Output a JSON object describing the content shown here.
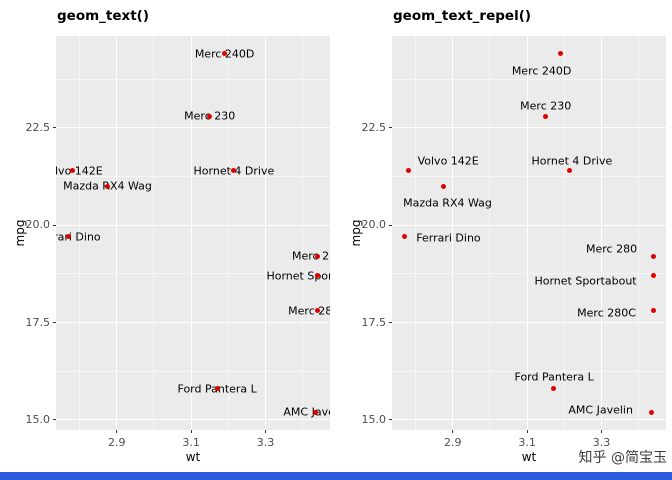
{
  "watermark": {
    "text": "知乎 @简宝玉",
    "bar_color": "#2b5ce0"
  },
  "chart_data": {
    "type": "scatter",
    "panels": [
      {
        "title": "geom_text()",
        "label_mode": "centered"
      },
      {
        "title": "geom_text_repel()",
        "label_mode": "repel"
      }
    ],
    "xlabel": "wt",
    "ylabel": "mpg",
    "xlim": [
      2.7365,
      3.4735
    ],
    "ylim": [
      14.74,
      24.86
    ],
    "x_ticks": [
      {
        "value": 2.9,
        "label": "2.9"
      },
      {
        "value": 3.1,
        "label": "3.1"
      },
      {
        "value": 3.3,
        "label": "3.3"
      }
    ],
    "y_ticks": [
      {
        "value": 15.0,
        "label": "15.0"
      },
      {
        "value": 17.5,
        "label": "17.5"
      },
      {
        "value": 20.0,
        "label": "20.0"
      },
      {
        "value": 22.5,
        "label": "22.5"
      }
    ],
    "x_minor_ticks": [
      2.8,
      3.0,
      3.2,
      3.4
    ],
    "y_minor_ticks": [
      16.25,
      18.75,
      21.25,
      23.75
    ],
    "styles": {
      "panel_bg": "#ebebeb",
      "grid_color": "#ffffff",
      "point_color": "#e00000",
      "label_color": "#000000",
      "tick_label_color": "#4d4d4d",
      "tick_mark_color": "#333333"
    },
    "points": [
      {
        "label": "Merc 240D",
        "wt": 3.19,
        "mpg": 24.4,
        "repel_dx": -19,
        "repel_dy": 17
      },
      {
        "label": "Merc 230",
        "wt": 3.15,
        "mpg": 22.8,
        "repel_dx": 0,
        "repel_dy": -10
      },
      {
        "label": "Volvo 142E",
        "wt": 2.78,
        "mpg": 21.4,
        "repel_dx": 40,
        "repel_dy": -10
      },
      {
        "label": "Hornet 4 Drive",
        "wt": 3.215,
        "mpg": 21.4,
        "repel_dx": 2,
        "repel_dy": -10
      },
      {
        "label": "Mazda RX4 Wag",
        "wt": 2.875,
        "mpg": 21.0,
        "repel_dx": 4,
        "repel_dy": 17
      },
      {
        "label": "Ferrari Dino",
        "wt": 2.77,
        "mpg": 19.7,
        "repel_dx": 44,
        "repel_dy": 1
      },
      {
        "label": "Merc 280",
        "wt": 3.44,
        "mpg": 19.2,
        "repel_dx": -42,
        "repel_dy": -7
      },
      {
        "label": "Hornet Sportabout",
        "wt": 3.44,
        "mpg": 18.7,
        "repel_dx": -68,
        "repel_dy": 5
      },
      {
        "label": "Merc 280C",
        "wt": 3.44,
        "mpg": 17.8,
        "repel_dx": -47,
        "repel_dy": 2
      },
      {
        "label": "Ford Pantera L",
        "wt": 3.17,
        "mpg": 15.8,
        "repel_dx": 1,
        "repel_dy": -12
      },
      {
        "label": "AMC Javelin",
        "wt": 3.435,
        "mpg": 15.2,
        "repel_dx": -51,
        "repel_dy": -2
      }
    ]
  }
}
